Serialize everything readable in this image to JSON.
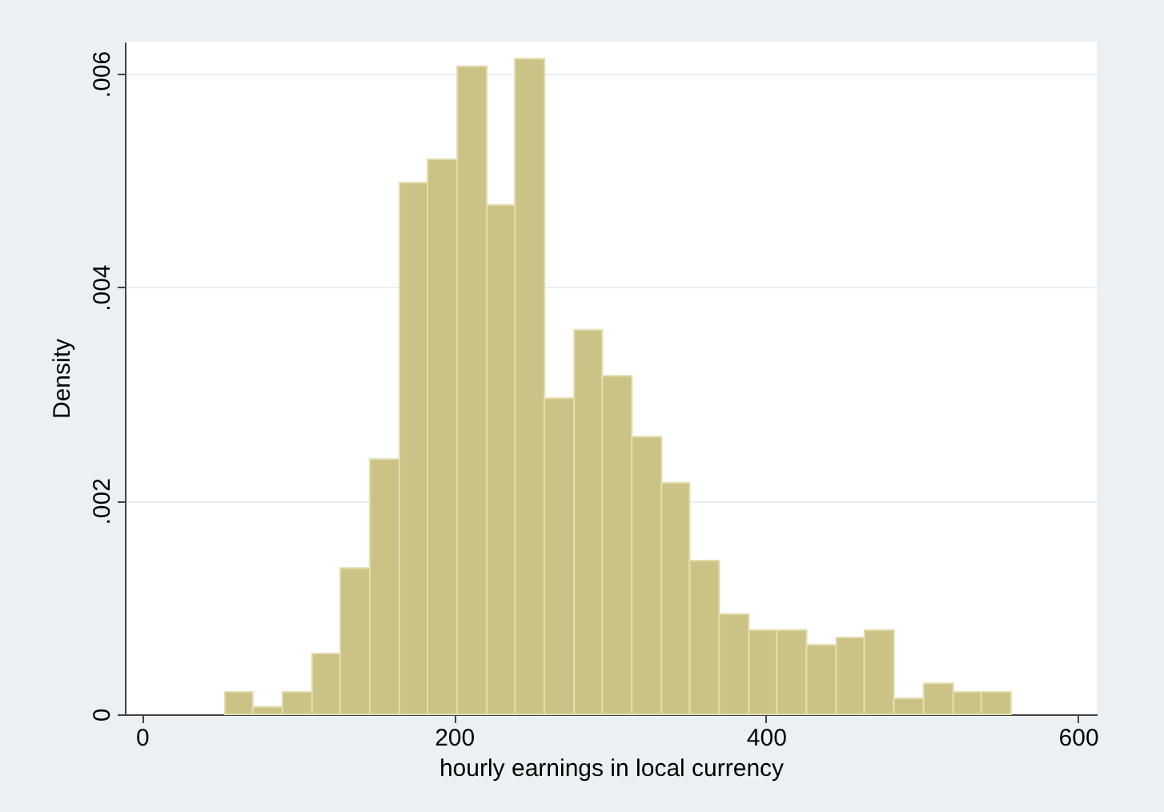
{
  "chart_data": {
    "type": "histogram",
    "xlabel": "hourly earnings in local currency",
    "ylabel": "Density",
    "bins": [
      53,
      71,
      90,
      109,
      127,
      146,
      165,
      183,
      202,
      221,
      239,
      258,
      277,
      295,
      314,
      333,
      351,
      370,
      389,
      407,
      426,
      445,
      463,
      482,
      501,
      520,
      538,
      557
    ],
    "values": [
      0.00021,
      7e-05,
      0.00021,
      0.00057,
      0.00137,
      0.00239,
      0.00498,
      0.0052,
      0.00607,
      0.00477,
      0.00614,
      0.00296,
      0.0036,
      0.00317,
      0.0026,
      0.00217,
      0.00144,
      0.00094,
      0.00079,
      0.00079,
      0.00065,
      0.00072,
      0.00079,
      0.00015,
      0.00029,
      0.00021,
      0.00021
    ],
    "color": "#cbc386",
    "xlim": [
      -11,
      612
    ],
    "xticks": [
      0,
      200,
      400,
      600
    ],
    "ylim": [
      0,
      0.0063
    ],
    "yticks": [
      0,
      {
        "value": 0.002,
        "label": ".002"
      },
      {
        "value": 0.004,
        "label": ".004"
      },
      {
        "value": 0.006,
        "label": ".006"
      }
    ],
    "grid": "y"
  }
}
